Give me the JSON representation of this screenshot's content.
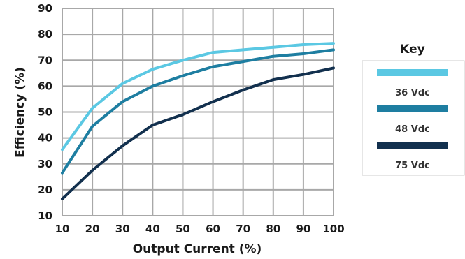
{
  "chart_data": {
    "type": "line",
    "xlabel": "Output Current (%)",
    "ylabel": "Efficiency (%)",
    "xlim": [
      10,
      100
    ],
    "ylim": [
      10,
      90
    ],
    "xticks": [
      "10",
      "20",
      "30",
      "40",
      "50",
      "60",
      "70",
      "80",
      "90",
      "100"
    ],
    "yticks": [
      "10",
      "20",
      "30",
      "40",
      "50",
      "60",
      "70",
      "80",
      "90"
    ],
    "grid": true,
    "legend": {
      "title": "Key",
      "position": "right"
    },
    "x": [
      10,
      20,
      30,
      40,
      50,
      60,
      70,
      80,
      90,
      100
    ],
    "series": [
      {
        "name": "36 Vdc",
        "color": "#5bc8e3",
        "values": [
          35.5,
          51.5,
          61,
          66.5,
          70,
          73,
          74,
          75,
          76,
          76.5
        ]
      },
      {
        "name": "48 Vdc",
        "color": "#1e7ea1",
        "values": [
          26.5,
          44.5,
          54,
          60,
          64,
          67.5,
          69.5,
          71.5,
          72.5,
          74
        ]
      },
      {
        "name": "75 Vdc",
        "color": "#12304e",
        "values": [
          16.5,
          27.5,
          37,
          45,
          49,
          54,
          58.5,
          62.5,
          64.5,
          67
        ]
      }
    ]
  }
}
